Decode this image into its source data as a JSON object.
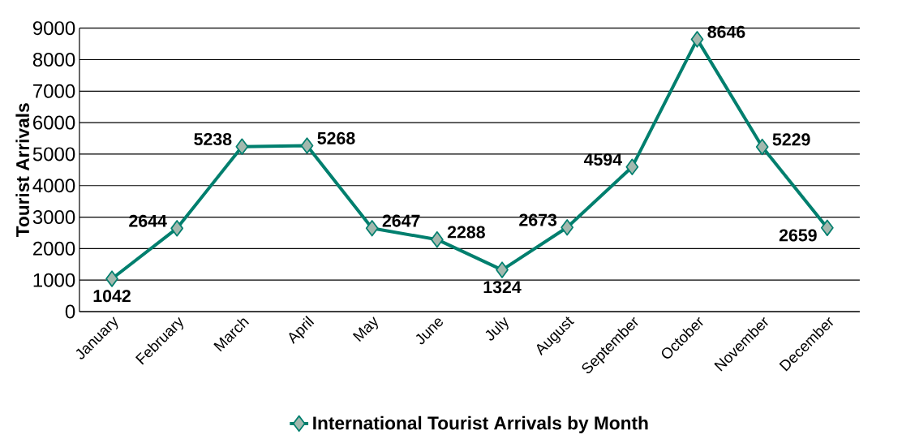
{
  "chart_data": {
    "type": "line",
    "categories": [
      "January",
      "February",
      "March",
      "April",
      "May",
      "June",
      "July",
      "August",
      "September",
      "October",
      "November",
      "December"
    ],
    "series": [
      {
        "name": "International Tourist Arrivals by Month",
        "color": "#007f6e",
        "values": [
          1042,
          2644,
          5238,
          5268,
          2647,
          2288,
          1324,
          2673,
          4594,
          8646,
          5229,
          2659
        ]
      }
    ],
    "ylabel": "Tourist Arrivals",
    "ylim": [
      0,
      9000
    ],
    "yticks": [
      0,
      1000,
      2000,
      3000,
      4000,
      5000,
      6000,
      7000,
      8000,
      9000
    ],
    "grid": "y",
    "legend": "bottom",
    "marker": "diamond",
    "line_style": "solid",
    "data_labels": true
  }
}
